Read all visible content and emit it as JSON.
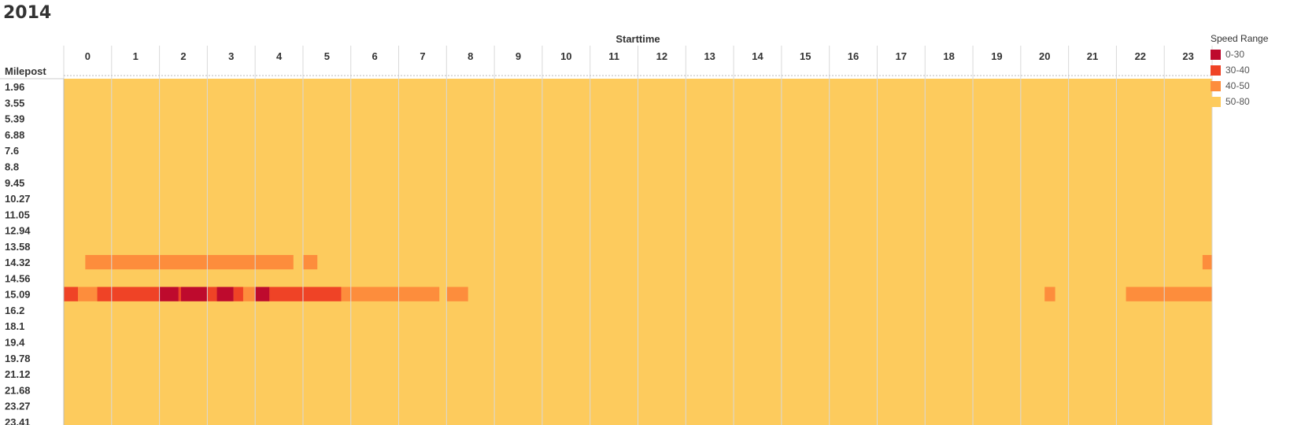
{
  "page": {
    "title": "2014"
  },
  "chart_data": {
    "type": "heatmap",
    "title": "2014",
    "xlabel": "Starttime",
    "ylabel": "Milepost",
    "x_categories": [
      "0",
      "1",
      "2",
      "3",
      "4",
      "5",
      "6",
      "7",
      "8",
      "9",
      "10",
      "11",
      "12",
      "13",
      "14",
      "15",
      "16",
      "17",
      "18",
      "19",
      "20",
      "21",
      "22",
      "23"
    ],
    "y_categories": [
      "1.96",
      "3.55",
      "5.39",
      "6.88",
      "7.6",
      "8.8",
      "9.45",
      "10.27",
      "11.05",
      "12.94",
      "13.58",
      "14.32",
      "14.56",
      "15.09",
      "16.2",
      "18.1",
      "19.4",
      "19.78",
      "21.12",
      "21.68",
      "23.27",
      "23.41"
    ],
    "legend": {
      "title": "Speed Range",
      "position": "right",
      "items": [
        {
          "label": "0-30",
          "color": "#be0a2d"
        },
        {
          "label": "30-40",
          "color": "#ef4326"
        },
        {
          "label": "40-50",
          "color": "#fd8d3c"
        },
        {
          "label": "50-80",
          "color": "#fdcb5d"
        }
      ]
    },
    "default_range": "50-80",
    "segments": [
      {
        "milepost": "14.32",
        "start": 0.45,
        "end": 4.8,
        "range": "40-50"
      },
      {
        "milepost": "14.32",
        "start": 5.0,
        "end": 5.3,
        "range": "40-50"
      },
      {
        "milepost": "14.32",
        "start": 23.8,
        "end": 24.0,
        "range": "40-50"
      },
      {
        "milepost": "15.09",
        "start": 0.0,
        "end": 0.3,
        "range": "30-40"
      },
      {
        "milepost": "15.09",
        "start": 0.3,
        "end": 0.7,
        "range": "40-50"
      },
      {
        "milepost": "15.09",
        "start": 0.7,
        "end": 2.0,
        "range": "30-40"
      },
      {
        "milepost": "15.09",
        "start": 2.0,
        "end": 2.4,
        "range": "0-30"
      },
      {
        "milepost": "15.09",
        "start": 2.4,
        "end": 2.45,
        "range": "30-40"
      },
      {
        "milepost": "15.09",
        "start": 2.45,
        "end": 3.0,
        "range": "0-30"
      },
      {
        "milepost": "15.09",
        "start": 3.0,
        "end": 3.2,
        "range": "30-40"
      },
      {
        "milepost": "15.09",
        "start": 3.2,
        "end": 3.55,
        "range": "0-30"
      },
      {
        "milepost": "15.09",
        "start": 3.55,
        "end": 3.75,
        "range": "30-40"
      },
      {
        "milepost": "15.09",
        "start": 3.75,
        "end": 4.0,
        "range": "40-50"
      },
      {
        "milepost": "15.09",
        "start": 4.0,
        "end": 4.3,
        "range": "0-30"
      },
      {
        "milepost": "15.09",
        "start": 4.3,
        "end": 5.8,
        "range": "30-40"
      },
      {
        "milepost": "15.09",
        "start": 5.8,
        "end": 7.85,
        "range": "40-50"
      },
      {
        "milepost": "15.09",
        "start": 8.0,
        "end": 8.45,
        "range": "40-50"
      },
      {
        "milepost": "15.09",
        "start": 20.5,
        "end": 20.72,
        "range": "40-50"
      },
      {
        "milepost": "15.09",
        "start": 22.2,
        "end": 24.0,
        "range": "40-50"
      }
    ]
  }
}
